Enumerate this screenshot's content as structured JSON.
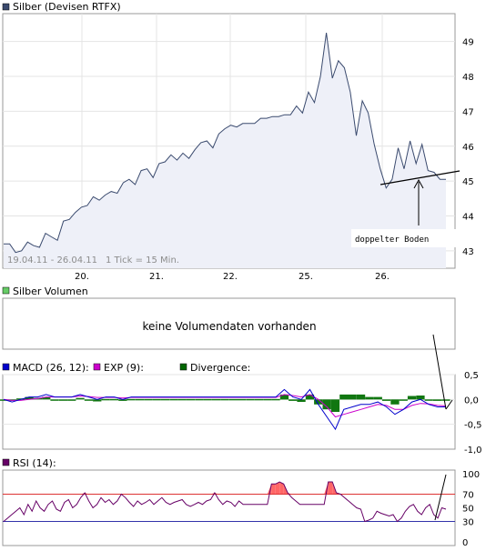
{
  "chart_data": [
    {
      "type": "line",
      "title": "Silber (Devisen RTFX)",
      "legend_color": "#3a4a6e",
      "range_text": "19.04.11 - 26.04.11",
      "tick_text": "1 Tick = 15 Min.",
      "x_labels": [
        "20.",
        "21.",
        "22.",
        "25.",
        "26."
      ],
      "y_ticks": [
        43,
        44,
        45,
        46,
        47,
        48,
        49
      ],
      "ylim": [
        42.5,
        49.8
      ],
      "annotation": "doppelter Boden",
      "series": [
        {
          "values": [
            43.2,
            43.2,
            42.95,
            43.0,
            43.25,
            43.15,
            43.1,
            43.5,
            43.4,
            43.3,
            43.85,
            43.9,
            44.1,
            44.25,
            44.3,
            44.55,
            44.45,
            44.6,
            44.7,
            44.65,
            44.95,
            45.05,
            44.9,
            45.3,
            45.35,
            45.1,
            45.5,
            45.55,
            45.75,
            45.6,
            45.8,
            45.65,
            45.9,
            46.1,
            46.15,
            45.95,
            46.35,
            46.5,
            46.6,
            46.55,
            46.65,
            46.65,
            46.65,
            46.8,
            46.8,
            46.85,
            46.85,
            46.9,
            46.9,
            47.15,
            46.95,
            47.55,
            47.25,
            48.0,
            49.25,
            47.95,
            48.45,
            48.25,
            47.55,
            46.3,
            47.3,
            46.95,
            46.05,
            45.35,
            44.8,
            45.05,
            45.95,
            45.35,
            46.15,
            45.5,
            46.05,
            45.3,
            45.25,
            45.05,
            45.05
          ]
        }
      ]
    },
    {
      "type": "line",
      "title": "Silber Volumen",
      "legend_color": "#66cc66",
      "message": "keine Volumendaten vorhanden"
    },
    {
      "type": "line",
      "title": "MACD",
      "legend": [
        {
          "label": "MACD (26, 12):",
          "color": "#0000cc"
        },
        {
          "label": "EXP (9):",
          "color": "#cc00cc"
        },
        {
          "label": "Divergence:",
          "color": "#006600"
        }
      ],
      "y_ticks": [
        "0,5",
        "0,0",
        "-0,5",
        "-1,0"
      ],
      "ylim": [
        -1.0,
        0.5
      ],
      "series": [
        {
          "name": "MACD (26, 12):",
          "values": [
            0.0,
            -0.05,
            0.0,
            0.05,
            0.05,
            0.1,
            0.05,
            0.05,
            0.05,
            0.1,
            0.05,
            0.0,
            0.05,
            0.05,
            0.0,
            0.05,
            0.05,
            0.05,
            0.05,
            0.05,
            0.05,
            0.05,
            0.05,
            0.05,
            0.05,
            0.05,
            0.05,
            0.05,
            0.05,
            0.05,
            0.05,
            0.05,
            0.05,
            0.2,
            0.05,
            0.0,
            0.2,
            -0.1,
            -0.35,
            -0.6,
            -0.2,
            -0.15,
            -0.1,
            -0.1,
            -0.05,
            -0.15,
            -0.3,
            -0.2,
            -0.05,
            0.0,
            -0.1,
            -0.15,
            -0.15
          ]
        },
        {
          "name": "EXP (9):",
          "values": [
            0.0,
            -0.02,
            -0.02,
            0.0,
            0.02,
            0.05,
            0.05,
            0.05,
            0.05,
            0.07,
            0.06,
            0.04,
            0.04,
            0.04,
            0.03,
            0.04,
            0.04,
            0.04,
            0.04,
            0.04,
            0.04,
            0.04,
            0.04,
            0.04,
            0.04,
            0.04,
            0.04,
            0.04,
            0.04,
            0.04,
            0.04,
            0.04,
            0.04,
            0.1,
            0.08,
            0.05,
            0.1,
            0.0,
            -0.15,
            -0.35,
            -0.3,
            -0.25,
            -0.2,
            -0.15,
            -0.1,
            -0.12,
            -0.2,
            -0.2,
            -0.12,
            -0.08,
            -0.09,
            -0.12,
            -0.13
          ]
        }
      ]
    },
    {
      "type": "line",
      "title": "RSI (14):",
      "legend_color": "#660066",
      "y_ticks": [
        "100",
        "70",
        "50",
        "30",
        "0"
      ],
      "reference_lines": [
        70,
        30
      ],
      "ylim": [
        0,
        100
      ],
      "series": [
        {
          "values": [
            30,
            35,
            40,
            45,
            50,
            40,
            55,
            45,
            60,
            50,
            45,
            55,
            60,
            48,
            45,
            58,
            62,
            50,
            55,
            65,
            72,
            60,
            50,
            55,
            65,
            58,
            62,
            55,
            60,
            70,
            65,
            58,
            52,
            60,
            55,
            58,
            62,
            55,
            60,
            65,
            58,
            55,
            58,
            60,
            62,
            55,
            52,
            55,
            58,
            55,
            60,
            62,
            72,
            62,
            55,
            60,
            58,
            52,
            60,
            55,
            55,
            55,
            55,
            55,
            55,
            55,
            85,
            85,
            88,
            85,
            72,
            65,
            60,
            55,
            55,
            55,
            55,
            55,
            55,
            55,
            88,
            88,
            72,
            70,
            65,
            60,
            55,
            50,
            48,
            30,
            32,
            35,
            45,
            42,
            40,
            38,
            40,
            30,
            35,
            45,
            52,
            55,
            45,
            40,
            50,
            55,
            40,
            35,
            50,
            48
          ]
        }
      ]
    }
  ]
}
